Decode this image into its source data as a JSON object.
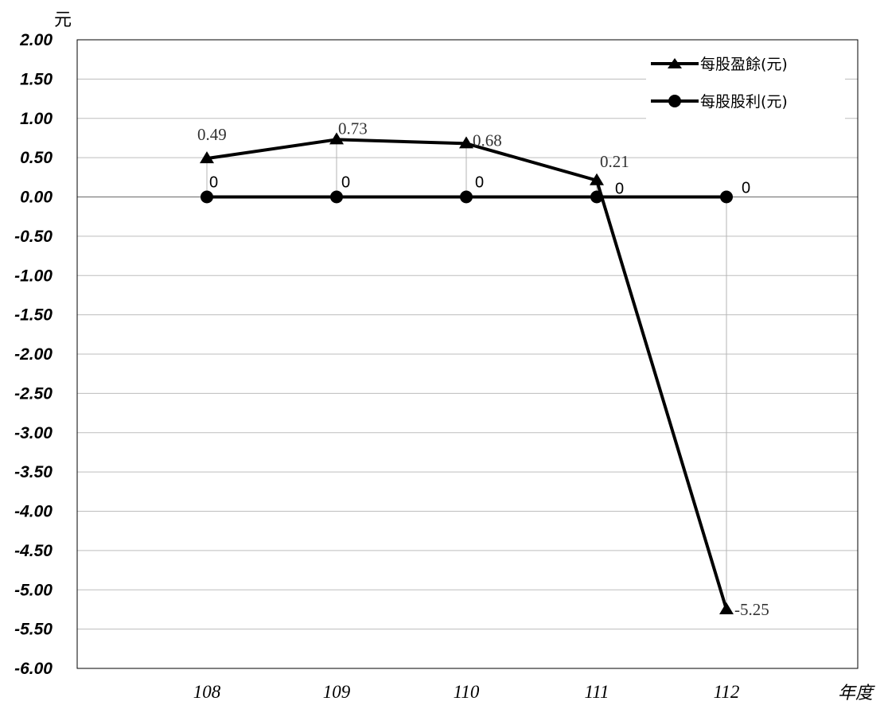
{
  "chart_data": {
    "type": "line",
    "ylabel": "元",
    "xlabel": "年度",
    "categories": [
      "108",
      "109",
      "110",
      "111",
      "112"
    ],
    "ylim": [
      -6.0,
      2.0
    ],
    "ytick_step": 0.5,
    "ytick_labels": [
      "2.00",
      "1.50",
      "1.00",
      "0.50",
      "0.00",
      "-0.50",
      "-1.00",
      "-1.50",
      "-2.00",
      "-2.50",
      "-3.00",
      "-3.50",
      "-4.00",
      "-4.50",
      "-5.00",
      "-5.50",
      "-6.00"
    ],
    "grid": true,
    "legend_position": "top-right",
    "series": [
      {
        "name": "每股盈餘(元)",
        "marker": "triangle",
        "values": [
          0.49,
          0.73,
          0.68,
          0.21,
          -5.25
        ],
        "labels": [
          "0.49",
          "0.73",
          "0.68",
          "0.21",
          "-5.25"
        ],
        "color": "#000000"
      },
      {
        "name": "每股股利(元)",
        "marker": "circle",
        "values": [
          0,
          0,
          0,
          0,
          0
        ],
        "labels": [
          "0",
          "0",
          "0",
          "0",
          "0"
        ],
        "color": "#000000"
      }
    ]
  }
}
